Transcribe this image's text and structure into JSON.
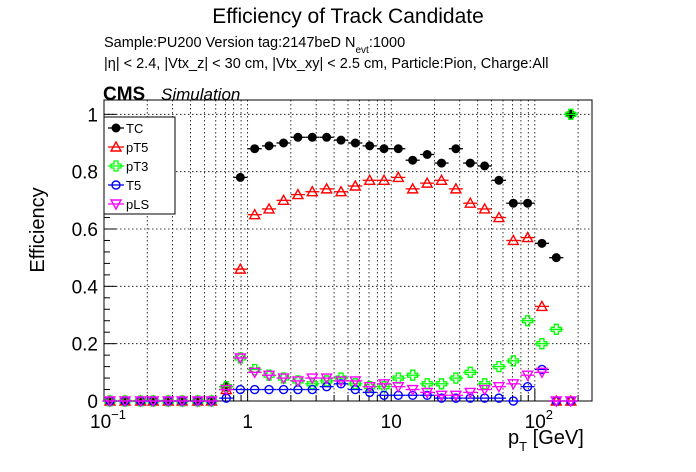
{
  "chart_data": {
    "type": "scatter",
    "title": "Efficiency of Track Candidate",
    "subtitle_line1": "Sample:PU200   Version tag:2147beD  N",
    "subtitle_line1_sub": "evt",
    "subtitle_line1_tail": ":1000",
    "subtitle_line2": "|η| < 2.4, |Vtx_z| < 30 cm, |Vtx_xy| < 2.5 cm, Particle:Pion, Charge:All",
    "cms_label": "CMS",
    "sim_label": "Simulation",
    "xlabel": "p",
    "xlabel_sub": "T",
    "xlabel_unit": " [GeV]",
    "ylabel": "Efficiency",
    "x_scale": "log",
    "xlim": [
      0.1,
      250
    ],
    "ylim": [
      0,
      1.05
    ],
    "x_ticks": [
      {
        "label": "10",
        "sup": "−1",
        "value": 0.1
      },
      {
        "label": "1",
        "sup": "",
        "value": 1
      },
      {
        "label": "10",
        "sup": "",
        "value": 10
      },
      {
        "label": "10",
        "sup": "2",
        "value": 100
      }
    ],
    "y_ticks": [
      "0",
      "0.2",
      "0.4",
      "0.6",
      "0.8",
      "1"
    ],
    "grid": true,
    "legend_position": "top-left",
    "x": [
      0.11,
      0.14,
      0.18,
      0.22,
      0.28,
      0.35,
      0.45,
      0.56,
      0.71,
      0.89,
      1.12,
      1.41,
      1.78,
      2.24,
      2.82,
      3.55,
      4.47,
      5.62,
      7.08,
      8.91,
      11.2,
      14.1,
      17.8,
      22.4,
      28.2,
      35.5,
      44.7,
      56.2,
      70.8,
      89.1,
      112,
      141,
      178
    ],
    "series": [
      {
        "name": "TC",
        "color": "#000000",
        "marker": "filled-circle",
        "values": [
          0,
          0,
          0,
          0,
          0,
          0,
          0,
          0,
          0.05,
          0.78,
          0.88,
          0.89,
          0.9,
          0.92,
          0.92,
          0.92,
          0.91,
          0.9,
          0.89,
          0.88,
          0.88,
          0.84,
          0.86,
          0.83,
          0.88,
          0.83,
          0.82,
          0.77,
          0.69,
          0.69,
          0.55,
          0.5,
          1.0
        ]
      },
      {
        "name": "pT5",
        "color": "#ff0000",
        "marker": "open-triangle",
        "values": [
          0,
          0,
          0,
          0,
          0,
          0,
          0,
          0,
          0.04,
          0.46,
          0.65,
          0.67,
          0.7,
          0.72,
          0.73,
          0.74,
          0.73,
          0.75,
          0.77,
          0.77,
          0.78,
          0.74,
          0.76,
          0.77,
          0.74,
          0.69,
          0.67,
          0.64,
          0.56,
          0.57,
          0.33,
          0,
          0
        ]
      },
      {
        "name": "pT3",
        "color": "#00ff00",
        "marker": "open-cross",
        "values": [
          0,
          0,
          0,
          0,
          0,
          0,
          0,
          0,
          0.05,
          0.15,
          0.11,
          0.09,
          0.08,
          0.07,
          0.06,
          0.07,
          0.08,
          0.06,
          0.05,
          0.05,
          0.08,
          0.09,
          0.06,
          0.06,
          0.08,
          0.1,
          0.06,
          0.12,
          0.14,
          0.28,
          0.2,
          0.25,
          1.0
        ]
      },
      {
        "name": "T5",
        "color": "#0000ff",
        "marker": "open-circle",
        "values": [
          0,
          0,
          0,
          0,
          0,
          0,
          0,
          0,
          0.01,
          0.04,
          0.04,
          0.04,
          0.04,
          0.04,
          0.04,
          0.05,
          0.06,
          0.04,
          0.03,
          0.02,
          0.02,
          0.02,
          0.02,
          0.01,
          0.01,
          0.01,
          0.01,
          0.01,
          0.0,
          0.05,
          0.11,
          0.0,
          0.0
        ]
      },
      {
        "name": "pLS",
        "color": "#ff00ff",
        "marker": "open-triangle-down",
        "values": [
          0,
          0,
          0,
          0,
          0,
          0,
          0,
          0,
          0.04,
          0.15,
          0.1,
          0.09,
          0.08,
          0.07,
          0.08,
          0.08,
          0.07,
          0.07,
          0.05,
          0.06,
          0.05,
          0.04,
          0.03,
          0.02,
          0.02,
          0.03,
          0.04,
          0.05,
          0.06,
          0.09,
          0.1,
          0.0,
          0.0
        ]
      }
    ]
  }
}
